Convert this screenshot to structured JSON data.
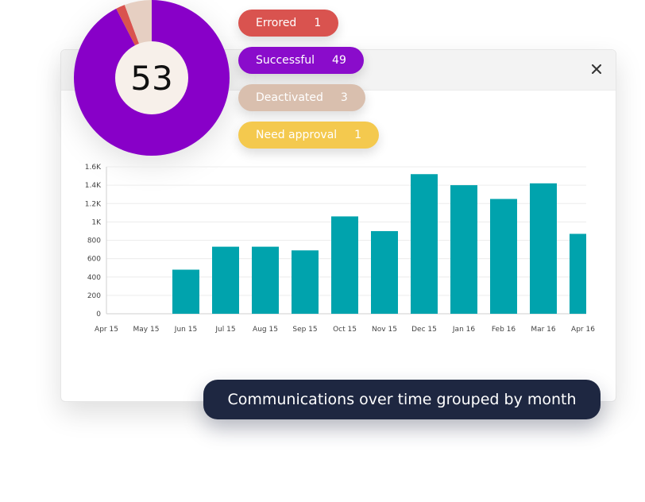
{
  "donut": {
    "total": "53",
    "segments": [
      {
        "label": "Successful",
        "value": 49,
        "color": "#8800c8"
      },
      {
        "label": "Errored",
        "value": 1,
        "color": "#d9534f"
      },
      {
        "label": "Deactivated",
        "value": 3,
        "color": "#e6cfc2"
      }
    ]
  },
  "status_pills": [
    {
      "label": "Errored",
      "count": "1",
      "color": "#d9534f"
    },
    {
      "label": "Successful",
      "count": "49",
      "color": "#8a0ccb"
    },
    {
      "label": "Deactivated",
      "count": "3",
      "color": "#d9bfae"
    },
    {
      "label": "Need approval",
      "count": "1",
      "color": "#f4c94e"
    }
  ],
  "close_icon": "close-icon",
  "chart_data": {
    "type": "bar",
    "categories": [
      "Apr 15",
      "May 15",
      "Jun 15",
      "Jul 15",
      "Aug 15",
      "Sep 15",
      "Oct 15",
      "Nov 15",
      "Dec 15",
      "Jan 16",
      "Feb 16",
      "Mar 16",
      "Apr 16"
    ],
    "values": [
      0,
      0,
      480,
      730,
      730,
      690,
      1060,
      900,
      1520,
      1400,
      1250,
      1420,
      870
    ],
    "y_ticks": [
      0,
      200,
      400,
      600,
      800,
      1000,
      1200,
      1400,
      1600
    ],
    "y_tick_labels": [
      "0",
      "200",
      "400",
      "600",
      "800",
      "1K",
      "1.2K",
      "1.4K",
      "1.6K"
    ],
    "ylim": [
      0,
      1600
    ],
    "bar_color": "#00a3ad",
    "grid": true
  },
  "caption": "Communications over time grouped by month"
}
